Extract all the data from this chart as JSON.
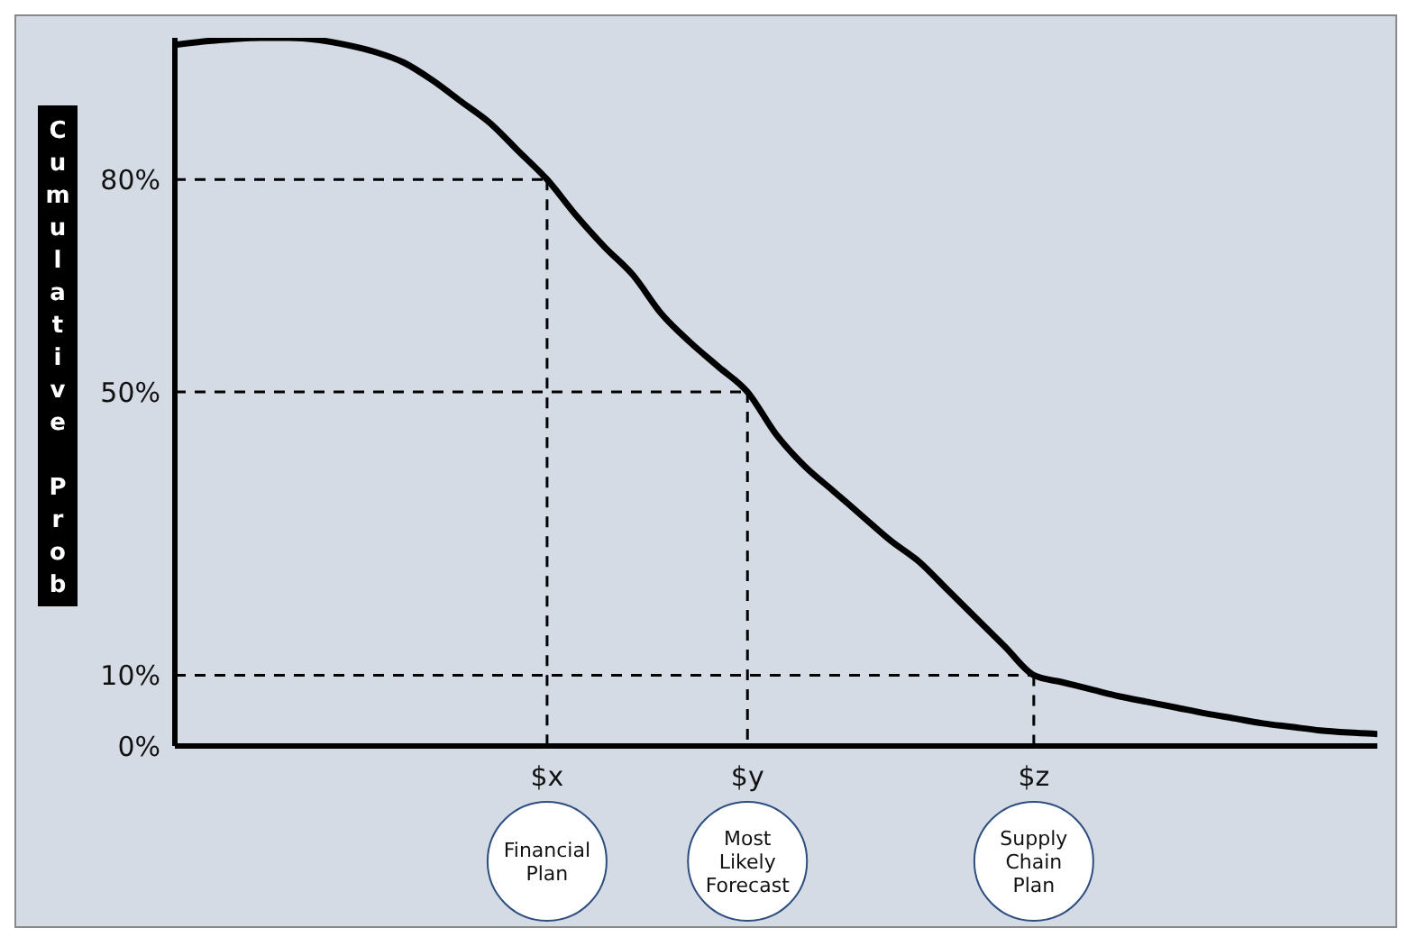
{
  "chart_data": {
    "type": "line",
    "ylabel": "Cumulative Prob",
    "categories": [
      null,
      null,
      null,
      null,
      null,
      null,
      null,
      null,
      null,
      null,
      null,
      null,
      null,
      "$x",
      null,
      null,
      null,
      null,
      null,
      null,
      "$y",
      null,
      null,
      null,
      null,
      null,
      null,
      null,
      null,
      null,
      "$z",
      null,
      null,
      null,
      null,
      null,
      null,
      null,
      null,
      null,
      null,
      null,
      null
    ],
    "series": [
      {
        "color": "#000000",
        "values": [
          99,
          99.5,
          99.8,
          100,
          100,
          99.7,
          99,
          98,
          96.5,
          94,
          91,
          88,
          84,
          80,
          75,
          70.5,
          66.5,
          61,
          57,
          53.5,
          50,
          44,
          39.5,
          36,
          32.5,
          29,
          26,
          22,
          18,
          14,
          10,
          9,
          8,
          7,
          6.2,
          5.4,
          4.6,
          3.9,
          3.2,
          2.7,
          2.2,
          1.9,
          1.7
        ]
      }
    ],
    "ylim": [
      0,
      100
    ],
    "yticks": [
      {
        "value": 0,
        "label": "0%"
      },
      {
        "value": 10,
        "label": "10%"
      },
      {
        "value": 50,
        "label": "50%"
      },
      {
        "value": 80,
        "label": "80%"
      }
    ],
    "ref_lines": [
      {
        "axis": "y",
        "value": 80,
        "line_style": "dashed"
      },
      {
        "axis": "y",
        "value": 50,
        "line_style": "dashed"
      },
      {
        "axis": "y",
        "value": 10,
        "line_style": "dashed"
      },
      {
        "axis": "x",
        "value": "$x",
        "line_style": "dashed"
      },
      {
        "axis": "x",
        "value": "$y",
        "line_style": "dashed"
      },
      {
        "axis": "x",
        "value": "$z",
        "line_style": "dashed"
      }
    ],
    "annotations": [
      "Financial Plan",
      "Most Likely Forecast",
      "Supply Chain Plan"
    ],
    "grid": false,
    "legend": false,
    "marker": "none",
    "line_style": "solid"
  }
}
